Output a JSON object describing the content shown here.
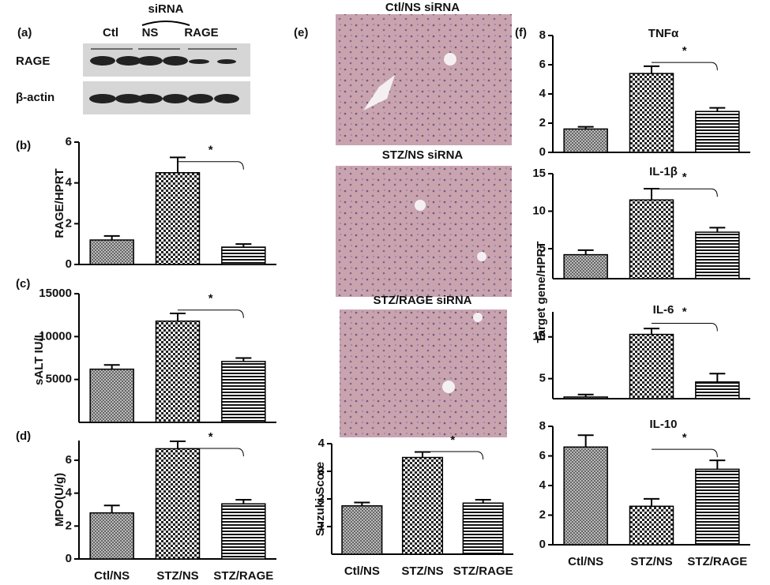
{
  "blot": {
    "panel": "(a)",
    "group": "siRNA",
    "lanes": [
      "Ctl",
      "NS",
      "RAGE"
    ],
    "rows": [
      "RAGE",
      "β-actin"
    ]
  },
  "histology": {
    "panel": "(e)",
    "captions": [
      "Ctl/NS siRNA",
      "STZ/NS siRNA",
      "STZ/RAGE siRNA"
    ]
  },
  "shared_ylabel": "Target gene/HPRT",
  "chart_data": [
    {
      "type": "bar",
      "panel": "(b)",
      "ylabel": "RAGE/HPRT",
      "values": [
        1.2,
        4.5,
        0.85
      ],
      "errors": [
        0.2,
        0.75,
        0.15
      ],
      "ylim": [
        0,
        6
      ],
      "yticks": [
        0,
        2,
        4,
        6
      ],
      "annotation": "*"
    },
    {
      "type": "bar",
      "panel": "(c)",
      "ylabel": "sALT  IU/L",
      "values": [
        6200,
        11800,
        7100
      ],
      "errors": [
        500,
        900,
        400
      ],
      "ylim": [
        0,
        15000
      ],
      "yticks": [
        5000,
        10000,
        15000
      ],
      "annotation": "*"
    },
    {
      "type": "bar",
      "panel": "(d)",
      "ylabel": "MPO(U/g)",
      "categories": [
        "Ctl/NS",
        "STZ/NS",
        "STZ/RAGE"
      ],
      "values": [
        2.8,
        6.7,
        3.35
      ],
      "errors": [
        0.45,
        0.45,
        0.25
      ],
      "ylim": [
        0,
        7.2
      ],
      "yticks": [
        0,
        2,
        4,
        6
      ],
      "annotation": "*"
    },
    {
      "type": "bar",
      "ylabel": "Suzuki Score",
      "categories": [
        "Ctl/NS",
        "STZ/NS",
        "STZ/RAGE"
      ],
      "values": [
        1.75,
        3.5,
        1.85
      ],
      "errors": [
        0.12,
        0.2,
        0.12
      ],
      "ylim": [
        0,
        4
      ],
      "yticks": [
        1,
        2,
        3,
        4
      ],
      "annotation": "*"
    },
    {
      "type": "bar",
      "panel": "(f)",
      "title": "TNFα",
      "values": [
        1.6,
        5.4,
        2.8
      ],
      "errors": [
        0.15,
        0.5,
        0.25
      ],
      "ylim": [
        0,
        8
      ],
      "yticks": [
        0,
        2,
        4,
        6,
        8
      ],
      "annotation": "*"
    },
    {
      "type": "bar",
      "title": "IL-1β",
      "values": [
        4.2,
        11.5,
        7.2
      ],
      "errors": [
        0.6,
        1.5,
        0.6
      ],
      "ylim": [
        1,
        15
      ],
      "yticks": [
        5,
        10,
        15
      ],
      "annotation": "*"
    },
    {
      "type": "bar",
      "title": "IL-6",
      "values": [
        2.8,
        10.3,
        4.6
      ],
      "errors": [
        0.3,
        0.7,
        1.0
      ],
      "ylim": [
        2.6,
        13
      ],
      "yticks": [
        5,
        10
      ],
      "annotation": "*"
    },
    {
      "type": "bar",
      "title": "IL-10",
      "categories": [
        "Ctl/NS",
        "STZ/NS",
        "STZ/RAGE"
      ],
      "values": [
        6.6,
        2.6,
        5.1
      ],
      "errors": [
        0.8,
        0.5,
        0.6
      ],
      "ylim": [
        0,
        8
      ],
      "yticks": [
        0,
        2,
        4,
        6,
        8
      ],
      "annotation": "*"
    }
  ]
}
